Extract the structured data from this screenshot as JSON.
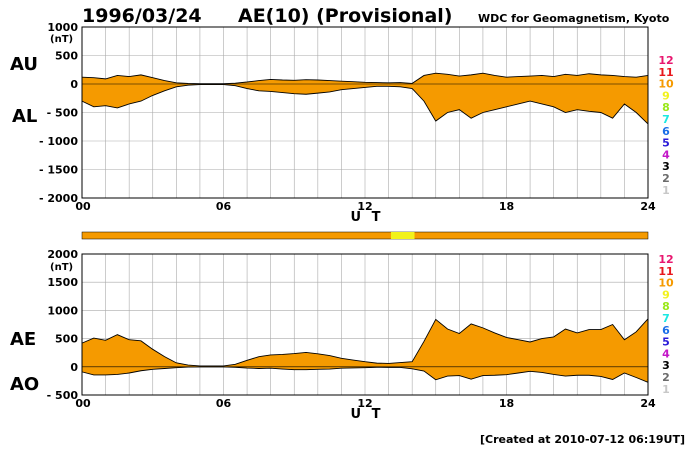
{
  "header": {
    "date": "1996/03/24",
    "title": "AE(10) (Provisional)",
    "source": "WDC for Geomagnetism, Kyoto"
  },
  "footer": {
    "created": "[Created at 2010-07-12 06:19UT]"
  },
  "legend": {
    "labels": [
      "12",
      "11",
      "10",
      "9",
      "8",
      "7",
      "6",
      "5",
      "4",
      "3",
      "2",
      "1"
    ],
    "colors": [
      "#e8176f",
      "#e8171d",
      "#f59a00",
      "#f2f21b",
      "#9ae81a",
      "#1be8e2",
      "#1b6fe8",
      "#2a1bd8",
      "#c417c8",
      "#000000",
      "#6b6b6b",
      "#c8c8c8"
    ]
  },
  "colors": {
    "fill": "#f59a00",
    "fill_low": "#f2f21b",
    "grid": "#aaaaaa",
    "bar": "#f59a00"
  },
  "chart_data": [
    {
      "type": "area",
      "panel": "AU/AL",
      "left_labels": {
        "upper": "AU",
        "lower": "AL"
      },
      "unit": "(nT)",
      "xlabel": "U T",
      "xlim": [
        0,
        24
      ],
      "ylim": [
        -2000,
        1000
      ],
      "x_ticks": [
        "00",
        "06",
        "12",
        "18",
        "24"
      ],
      "y_ticks": [
        "1000",
        "500",
        "0",
        "- 500",
        "- 1000",
        "- 1500",
        "- 2000"
      ],
      "x": [
        0,
        0.5,
        1,
        1.5,
        2,
        2.5,
        3,
        3.5,
        4,
        4.5,
        5,
        5.5,
        6,
        6.5,
        7,
        7.5,
        8,
        8.5,
        9,
        9.5,
        10,
        10.5,
        11,
        11.5,
        12,
        12.5,
        13,
        13.5,
        14,
        14.5,
        15,
        15.5,
        16,
        16.5,
        17,
        17.5,
        18,
        18.5,
        19,
        19.5,
        20,
        20.5,
        21,
        21.5,
        22,
        22.5,
        23,
        23.5,
        24
      ],
      "series": [
        {
          "name": "AU",
          "values": [
            120,
            110,
            90,
            150,
            130,
            160,
            110,
            60,
            20,
            10,
            5,
            5,
            5,
            15,
            35,
            60,
            80,
            70,
            65,
            75,
            70,
            60,
            50,
            40,
            30,
            25,
            20,
            25,
            10,
            150,
            190,
            170,
            140,
            160,
            190,
            150,
            120,
            130,
            140,
            150,
            130,
            170,
            150,
            180,
            160,
            150,
            130,
            120,
            150
          ]
        },
        {
          "name": "AL",
          "values": [
            -300,
            -400,
            -380,
            -420,
            -350,
            -300,
            -200,
            -120,
            -50,
            -20,
            -10,
            -10,
            -10,
            -30,
            -80,
            -120,
            -130,
            -150,
            -170,
            -180,
            -160,
            -140,
            -100,
            -80,
            -60,
            -40,
            -40,
            -50,
            -80,
            -300,
            -650,
            -500,
            -450,
            -600,
            -500,
            -450,
            -400,
            -350,
            -300,
            -350,
            -400,
            -500,
            -450,
            -480,
            -500,
            -600,
            -350,
            -500,
            -700
          ]
        }
      ]
    },
    {
      "type": "area",
      "panel": "AE/AO",
      "left_labels": {
        "upper": "AE",
        "lower": "AO"
      },
      "unit": "(nT)",
      "xlabel": "U T",
      "xlim": [
        0,
        24
      ],
      "ylim": [
        -500,
        2000
      ],
      "x_ticks": [
        "00",
        "06",
        "12",
        "18",
        "24"
      ],
      "y_ticks": [
        "2000",
        "1500",
        "1000",
        "500",
        "0",
        "- 500"
      ],
      "x": [
        0,
        0.5,
        1,
        1.5,
        2,
        2.5,
        3,
        3.5,
        4,
        4.5,
        5,
        5.5,
        6,
        6.5,
        7,
        7.5,
        8,
        8.5,
        9,
        9.5,
        10,
        10.5,
        11,
        11.5,
        12,
        12.5,
        13,
        13.5,
        14,
        14.5,
        15,
        15.5,
        16,
        16.5,
        17,
        17.5,
        18,
        18.5,
        19,
        19.5,
        20,
        20.5,
        21,
        21.5,
        22,
        22.5,
        23,
        23.5,
        24
      ],
      "series": [
        {
          "name": "AE",
          "values": [
            420,
            510,
            470,
            570,
            480,
            460,
            310,
            180,
            70,
            30,
            15,
            15,
            15,
            45,
            115,
            180,
            210,
            220,
            235,
            255,
            230,
            200,
            150,
            120,
            90,
            65,
            60,
            75,
            90,
            450,
            840,
            670,
            590,
            760,
            690,
            600,
            520,
            480,
            440,
            500,
            530,
            670,
            600,
            660,
            660,
            750,
            480,
            620,
            850
          ]
        },
        {
          "name": "AO",
          "values": [
            -90,
            -145,
            -145,
            -135,
            -110,
            -70,
            -45,
            -30,
            -15,
            -5,
            -3,
            -3,
            -3,
            -8,
            -22,
            -30,
            -25,
            -40,
            -52,
            -52,
            -45,
            -40,
            -25,
            -20,
            -15,
            -8,
            -10,
            -12,
            -35,
            -75,
            -230,
            -165,
            -155,
            -220,
            -155,
            -150,
            -140,
            -110,
            -80,
            -100,
            -135,
            -165,
            -150,
            -150,
            -170,
            -225,
            -110,
            -190,
            -275
          ]
        }
      ]
    }
  ]
}
